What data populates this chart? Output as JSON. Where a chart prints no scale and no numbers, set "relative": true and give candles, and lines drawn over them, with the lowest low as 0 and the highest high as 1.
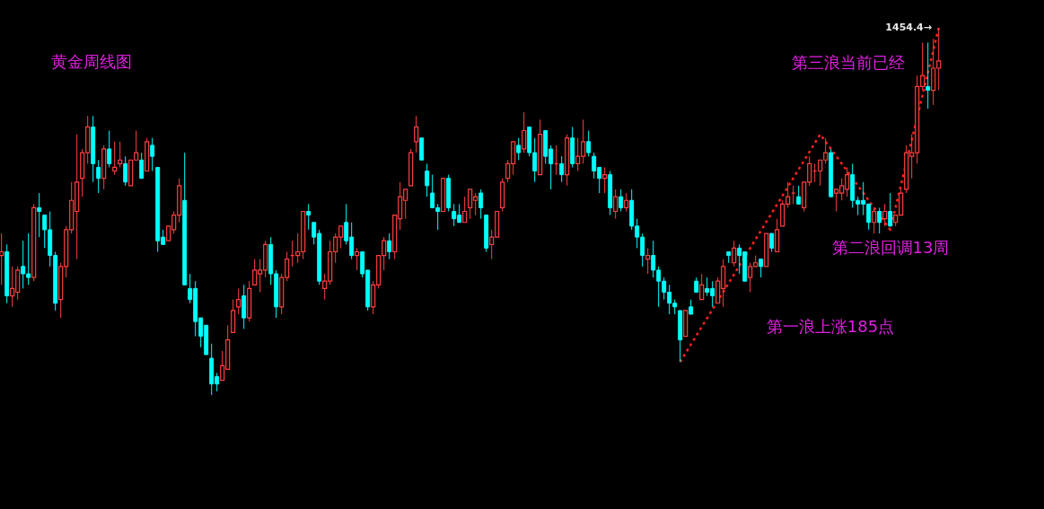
{
  "chart_data": {
    "type": "candlestick",
    "title": "黄金周线图",
    "relative": true,
    "categories": [
      null,
      null,
      null,
      null,
      null,
      null,
      null,
      null,
      null,
      null,
      null,
      null,
      null,
      null,
      null,
      null,
      null,
      null,
      null,
      null,
      null,
      null,
      null,
      null,
      null,
      null,
      null,
      null,
      null,
      null,
      null,
      null,
      null,
      null,
      null,
      null,
      null,
      null,
      null,
      null,
      null,
      null,
      null,
      null,
      null,
      null,
      null,
      null,
      null,
      null,
      null,
      null,
      null,
      null,
      null,
      null,
      null,
      null,
      null,
      null,
      null,
      null,
      null,
      null,
      null,
      null,
      null,
      null,
      null,
      null,
      null,
      null,
      null,
      null,
      null,
      null,
      null,
      null,
      null,
      null,
      null,
      null,
      null,
      null,
      null,
      null,
      null,
      null,
      null,
      null,
      null,
      null,
      null,
      null,
      null,
      null,
      null,
      null,
      null,
      null,
      null,
      null,
      null,
      null,
      null,
      null,
      null,
      null,
      null,
      null,
      null,
      null,
      null,
      null,
      null,
      null,
      null,
      null,
      null,
      null,
      null,
      null,
      null,
      null,
      null,
      null,
      null,
      null,
      null,
      null,
      null,
      null,
      null,
      null,
      null,
      null,
      null,
      null,
      null,
      null,
      null,
      null,
      null,
      null,
      null,
      null,
      null,
      null,
      null,
      null,
      null,
      null,
      null,
      null,
      null,
      null,
      null,
      null,
      null,
      null,
      null,
      null,
      null,
      null,
      null,
      null,
      null,
      null,
      null,
      null,
      null,
      null,
      null,
      null,
      null
    ],
    "ohlc": [
      [
        0.38,
        0.44,
        0.3,
        0.39
      ],
      [
        0.39,
        0.41,
        0.25,
        0.27
      ],
      [
        0.27,
        0.35,
        0.24,
        0.29
      ],
      [
        0.28,
        0.35,
        0.26,
        0.34
      ],
      [
        0.35,
        0.42,
        0.29,
        0.33
      ],
      [
        0.33,
        0.44,
        0.3,
        0.32
      ],
      [
        0.32,
        0.52,
        0.31,
        0.51
      ],
      [
        0.51,
        0.55,
        0.43,
        0.5
      ],
      [
        0.49,
        0.49,
        0.4,
        0.45
      ],
      [
        0.45,
        0.5,
        0.35,
        0.38
      ],
      [
        0.38,
        0.39,
        0.23,
        0.25
      ],
      [
        0.26,
        0.36,
        0.21,
        0.35
      ],
      [
        0.35,
        0.46,
        0.32,
        0.45
      ],
      [
        0.45,
        0.58,
        0.44,
        0.53
      ],
      [
        0.5,
        0.71,
        0.37,
        0.58
      ],
      [
        0.59,
        0.67,
        0.54,
        0.66
      ],
      [
        0.66,
        0.76,
        0.63,
        0.73
      ],
      [
        0.73,
        0.76,
        0.58,
        0.63
      ],
      [
        0.62,
        0.64,
        0.55,
        0.59
      ],
      [
        0.59,
        0.68,
        0.56,
        0.67
      ],
      [
        0.67,
        0.72,
        0.62,
        0.63
      ],
      [
        0.61,
        0.69,
        0.6,
        0.62
      ],
      [
        0.63,
        0.69,
        0.62,
        0.64
      ],
      [
        0.63,
        0.65,
        0.57,
        0.58
      ],
      [
        0.57,
        0.64,
        0.57,
        0.64
      ],
      [
        0.64,
        0.72,
        0.64,
        0.66
      ],
      [
        0.64,
        0.66,
        0.59,
        0.59
      ],
      [
        0.61,
        0.7,
        0.61,
        0.69
      ],
      [
        0.68,
        0.7,
        0.61,
        0.65
      ],
      [
        0.62,
        0.62,
        0.39,
        0.42
      ],
      [
        0.43,
        0.45,
        0.41,
        0.41
      ],
      [
        0.42,
        0.46,
        0.42,
        0.46
      ],
      [
        0.45,
        0.5,
        0.44,
        0.49
      ],
      [
        0.49,
        0.59,
        0.47,
        0.57
      ],
      [
        0.53,
        0.66,
        0.3,
        0.3
      ],
      [
        0.29,
        0.33,
        0.25,
        0.26
      ],
      [
        0.29,
        0.31,
        0.16,
        0.2
      ],
      [
        0.21,
        0.21,
        0.13,
        0.16
      ],
      [
        0.19,
        0.19,
        0.11,
        0.11
      ],
      [
        0.1,
        0.14,
        0.0,
        0.03
      ],
      [
        0.05,
        0.06,
        0.01,
        0.03
      ],
      [
        0.04,
        0.12,
        0.04,
        0.08
      ],
      [
        0.07,
        0.19,
        0.07,
        0.15
      ],
      [
        0.17,
        0.26,
        0.17,
        0.23
      ],
      [
        0.24,
        0.29,
        0.22,
        0.26
      ],
      [
        0.27,
        0.3,
        0.18,
        0.21
      ],
      [
        0.21,
        0.31,
        0.2,
        0.29
      ],
      [
        0.3,
        0.37,
        0.3,
        0.34
      ],
      [
        0.33,
        0.37,
        0.28,
        0.34
      ],
      [
        0.34,
        0.42,
        0.32,
        0.41
      ],
      [
        0.41,
        0.43,
        0.3,
        0.33
      ],
      [
        0.33,
        0.34,
        0.21,
        0.24
      ],
      [
        0.24,
        0.33,
        0.22,
        0.32
      ],
      [
        0.32,
        0.39,
        0.31,
        0.37
      ],
      [
        0.38,
        0.42,
        0.35,
        0.38
      ],
      [
        0.38,
        0.44,
        0.36,
        0.39
      ],
      [
        0.39,
        0.5,
        0.37,
        0.5
      ],
      [
        0.5,
        0.52,
        0.45,
        0.49
      ],
      [
        0.47,
        0.47,
        0.41,
        0.43
      ],
      [
        0.44,
        0.45,
        0.3,
        0.31
      ],
      [
        0.29,
        0.33,
        0.26,
        0.31
      ],
      [
        0.31,
        0.42,
        0.3,
        0.39
      ],
      [
        0.39,
        0.44,
        0.36,
        0.43
      ],
      [
        0.43,
        0.46,
        0.4,
        0.46
      ],
      [
        0.47,
        0.52,
        0.41,
        0.42
      ],
      [
        0.43,
        0.47,
        0.37,
        0.38
      ],
      [
        0.38,
        0.4,
        0.34,
        0.39
      ],
      [
        0.39,
        0.39,
        0.32,
        0.33
      ],
      [
        0.34,
        0.34,
        0.23,
        0.24
      ],
      [
        0.24,
        0.31,
        0.22,
        0.3
      ],
      [
        0.3,
        0.38,
        0.29,
        0.38
      ],
      [
        0.38,
        0.43,
        0.34,
        0.42
      ],
      [
        0.42,
        0.44,
        0.37,
        0.39
      ],
      [
        0.39,
        0.49,
        0.37,
        0.49
      ],
      [
        0.48,
        0.58,
        0.45,
        0.54
      ],
      [
        0.53,
        0.56,
        0.48,
        0.56
      ],
      [
        0.57,
        0.67,
        0.57,
        0.66
      ],
      [
        0.69,
        0.76,
        0.66,
        0.73
      ],
      [
        0.7,
        0.7,
        0.64,
        0.64
      ],
      [
        0.61,
        0.63,
        0.54,
        0.57
      ],
      [
        0.55,
        0.6,
        0.51,
        0.51
      ],
      [
        0.51,
        0.52,
        0.45,
        0.5
      ],
      [
        0.5,
        0.59,
        0.5,
        0.59
      ],
      [
        0.59,
        0.6,
        0.5,
        0.51
      ],
      [
        0.5,
        0.52,
        0.46,
        0.48
      ],
      [
        0.49,
        0.52,
        0.47,
        0.47
      ],
      [
        0.47,
        0.54,
        0.47,
        0.5
      ],
      [
        0.51,
        0.56,
        0.48,
        0.56
      ],
      [
        0.53,
        0.55,
        0.49,
        0.54
      ],
      [
        0.55,
        0.56,
        0.48,
        0.51
      ],
      [
        0.49,
        0.49,
        0.39,
        0.4
      ],
      [
        0.41,
        0.45,
        0.37,
        0.43
      ],
      [
        0.43,
        0.5,
        0.43,
        0.5
      ],
      [
        0.51,
        0.59,
        0.5,
        0.58
      ],
      [
        0.59,
        0.64,
        0.58,
        0.63
      ],
      [
        0.63,
        0.69,
        0.6,
        0.69
      ],
      [
        0.68,
        0.7,
        0.64,
        0.66
      ],
      [
        0.67,
        0.77,
        0.66,
        0.72
      ],
      [
        0.73,
        0.73,
        0.65,
        0.66
      ],
      [
        0.66,
        0.7,
        0.58,
        0.61
      ],
      [
        0.6,
        0.75,
        0.6,
        0.71
      ],
      [
        0.72,
        0.72,
        0.63,
        0.65
      ],
      [
        0.67,
        0.68,
        0.56,
        0.63
      ],
      [
        0.63,
        0.68,
        0.6,
        0.63
      ],
      [
        0.63,
        0.65,
        0.58,
        0.6
      ],
      [
        0.6,
        0.71,
        0.57,
        0.7
      ],
      [
        0.7,
        0.73,
        0.62,
        0.63
      ],
      [
        0.63,
        0.7,
        0.61,
        0.65
      ],
      [
        0.65,
        0.75,
        0.63,
        0.69
      ],
      [
        0.69,
        0.72,
        0.65,
        0.66
      ],
      [
        0.65,
        0.66,
        0.59,
        0.61
      ],
      [
        0.62,
        0.62,
        0.55,
        0.59
      ],
      [
        0.59,
        0.62,
        0.55,
        0.6
      ],
      [
        0.6,
        0.61,
        0.49,
        0.51
      ],
      [
        0.5,
        0.56,
        0.48,
        0.54
      ],
      [
        0.54,
        0.56,
        0.5,
        0.51
      ],
      [
        0.51,
        0.55,
        0.5,
        0.53
      ],
      [
        0.53,
        0.56,
        0.45,
        0.46
      ],
      [
        0.46,
        0.48,
        0.4,
        0.43
      ],
      [
        0.43,
        0.44,
        0.35,
        0.38
      ],
      [
        0.37,
        0.4,
        0.33,
        0.38
      ],
      [
        0.38,
        0.42,
        0.32,
        0.34
      ],
      [
        0.34,
        0.35,
        0.24,
        0.31
      ],
      [
        0.31,
        0.32,
        0.26,
        0.28
      ],
      [
        0.28,
        0.3,
        0.22,
        0.25
      ],
      [
        0.25,
        0.26,
        0.22,
        0.24
      ],
      [
        0.23,
        0.23,
        0.09,
        0.15
      ],
      [
        0.16,
        0.23,
        0.16,
        0.23
      ],
      [
        0.24,
        0.26,
        0.22,
        0.22
      ],
      [
        0.31,
        0.32,
        0.28,
        0.28
      ],
      [
        0.26,
        0.33,
        0.26,
        0.3
      ],
      [
        0.29,
        0.32,
        0.27,
        0.28
      ],
      [
        0.29,
        0.31,
        0.24,
        0.27
      ],
      [
        0.25,
        0.32,
        0.25,
        0.31
      ],
      [
        0.29,
        0.37,
        0.24,
        0.35
      ],
      [
        0.39,
        0.39,
        0.36,
        0.38
      ],
      [
        0.36,
        0.42,
        0.35,
        0.4
      ],
      [
        0.4,
        0.41,
        0.33,
        0.38
      ],
      [
        0.39,
        0.39,
        0.31,
        0.31
      ],
      [
        0.32,
        0.36,
        0.28,
        0.35
      ],
      [
        0.35,
        0.38,
        0.35,
        0.36
      ],
      [
        0.37,
        0.37,
        0.32,
        0.35
      ],
      [
        0.35,
        0.44,
        0.35,
        0.44
      ],
      [
        0.44,
        0.44,
        0.39,
        0.4
      ],
      [
        0.39,
        0.48,
        0.39,
        0.45
      ],
      [
        0.46,
        0.53,
        0.46,
        0.52
      ],
      [
        0.52,
        0.58,
        0.51,
        0.54
      ],
      [
        0.55,
        0.57,
        0.52,
        0.55
      ],
      [
        0.54,
        0.57,
        0.52,
        0.52
      ],
      [
        0.51,
        0.58,
        0.5,
        0.58
      ],
      [
        0.58,
        0.65,
        0.57,
        0.63
      ],
      [
        0.61,
        0.63,
        0.58,
        0.61
      ],
      [
        0.61,
        0.64,
        0.57,
        0.64
      ],
      [
        0.64,
        0.7,
        0.63,
        0.66
      ],
      [
        0.66,
        0.67,
        0.54,
        0.54
      ],
      [
        0.55,
        0.56,
        0.5,
        0.56
      ],
      [
        0.55,
        0.59,
        0.53,
        0.57
      ],
      [
        0.56,
        0.62,
        0.54,
        0.6
      ],
      [
        0.6,
        0.63,
        0.51,
        0.53
      ],
      [
        0.53,
        0.54,
        0.49,
        0.52
      ],
      [
        0.53,
        0.58,
        0.49,
        0.52
      ],
      [
        0.52,
        0.52,
        0.45,
        0.47
      ],
      [
        0.47,
        0.51,
        0.44,
        0.5
      ],
      [
        0.5,
        0.51,
        0.44,
        0.47
      ],
      [
        0.48,
        0.52,
        0.46,
        0.5
      ],
      [
        0.5,
        0.55,
        0.46,
        0.46
      ],
      [
        0.47,
        0.49,
        0.46,
        0.49
      ],
      [
        0.49,
        0.56,
        0.49,
        0.55
      ],
      [
        0.56,
        0.68,
        0.55,
        0.66
      ],
      [
        0.65,
        0.71,
        0.59,
        0.66
      ],
      [
        0.66,
        0.87,
        0.63,
        0.84
      ],
      [
        0.84,
        0.96,
        0.83,
        0.87
      ],
      [
        0.84,
        0.96,
        0.78,
        0.83
      ],
      [
        0.83,
        0.97,
        0.79,
        0.89
      ],
      [
        0.89,
        1.0,
        0.83,
        0.91
      ]
    ],
    "series": [
      {
        "type": "line",
        "color": "#ff2020",
        "line_style": "dotted",
        "marker": "none",
        "values": [
          null,
          null,
          null,
          null,
          null,
          null,
          null,
          null,
          null,
          null,
          null,
          null,
          null,
          null,
          null,
          null,
          null,
          null,
          null,
          null,
          null,
          null,
          null,
          null,
          null,
          null,
          null,
          null,
          null,
          null,
          null,
          null,
          null,
          null,
          null,
          null,
          null,
          null,
          null,
          null,
          null,
          null,
          null,
          null,
          null,
          null,
          null,
          null,
          null,
          null,
          null,
          null,
          null,
          null,
          null,
          null,
          null,
          null,
          null,
          null,
          null,
          null,
          null,
          null,
          null,
          null,
          null,
          null,
          null,
          null,
          null,
          null,
          null,
          null,
          null,
          null,
          null,
          null,
          null,
          null,
          null,
          null,
          null,
          null,
          null,
          null,
          null,
          null,
          null,
          null,
          null,
          null,
          null,
          null,
          null,
          null,
          null,
          null,
          null,
          null,
          null,
          null,
          null,
          null,
          null,
          null,
          null,
          null,
          null,
          null,
          null,
          null,
          null,
          null,
          null,
          null,
          null,
          null,
          null,
          null,
          null,
          null,
          null,
          null,
          null,
          null,
          0.09,
          null,
          null,
          null,
          null,
          null,
          null,
          null,
          null,
          null,
          null,
          null,
          null,
          null,
          null,
          null,
          null,
          null,
          null,
          null,
          null,
          null,
          null,
          null,
          null,
          null,
          0.71,
          null,
          null,
          null,
          null,
          null,
          null,
          null,
          null,
          null,
          null,
          null,
          null,
          0.45,
          null,
          null,
          null,
          null,
          null,
          null,
          null,
          null,
          1.0
        ]
      }
    ],
    "annotations": [
      "第三浪当前已经",
      "第二浪回调13周",
      "第一浪上涨185点",
      "1454.4→"
    ]
  }
}
